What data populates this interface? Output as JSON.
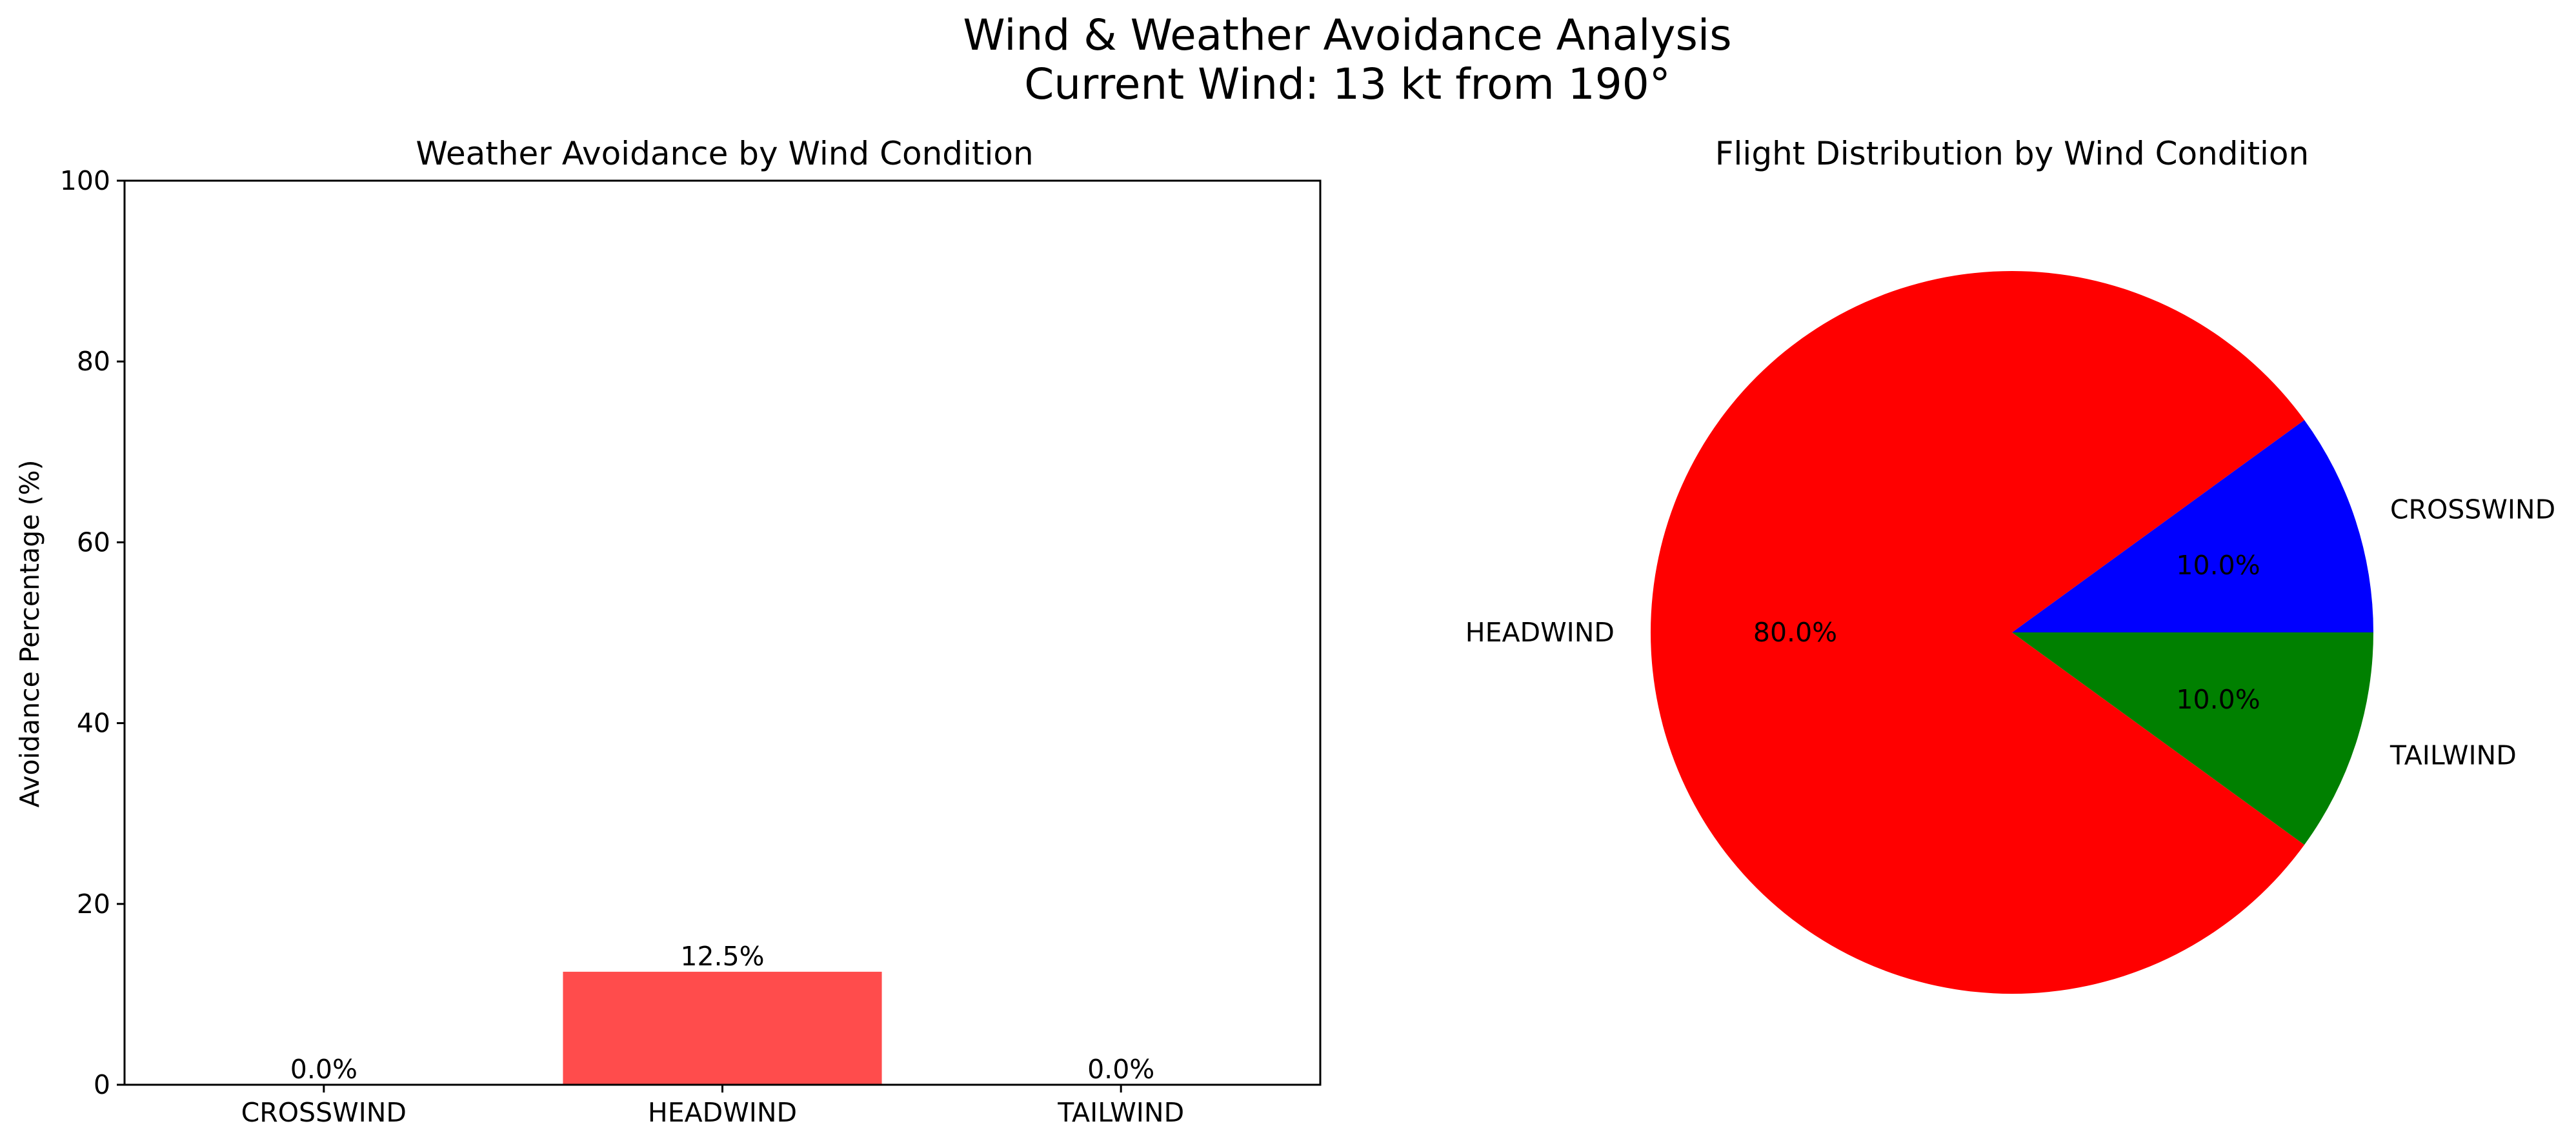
{
  "figure": {
    "title_line1": "Wind & Weather Avoidance Analysis",
    "title_line2": "Current Wind: 13 kt from 190°"
  },
  "chart_data": [
    {
      "type": "bar",
      "title": "Weather Avoidance by Wind Condition",
      "xlabel": "",
      "ylabel": "Avoidance Percentage (%)",
      "categories": [
        "CROSSWIND",
        "HEADWIND",
        "TAILWIND"
      ],
      "values": [
        0.0,
        12.5,
        0.0
      ],
      "value_labels": [
        "0.0%",
        "12.5%",
        "0.0%"
      ],
      "ylim": [
        0,
        100
      ],
      "yticks": [
        0,
        20,
        40,
        60,
        80,
        100
      ],
      "ytick_labels": [
        "0",
        "20",
        "40",
        "60",
        "80",
        "100"
      ],
      "bar_color": "#ff4c4c",
      "grid": false
    },
    {
      "type": "pie",
      "title": "Flight Distribution by Wind Condition",
      "labels": [
        "CROSSWIND",
        "HEADWIND",
        "TAILWIND"
      ],
      "values": [
        10.0,
        80.0,
        10.0
      ],
      "pct_labels": [
        "10.0%",
        "80.0%",
        "10.0%"
      ],
      "colors": [
        "#0000ff",
        "#ff0000",
        "#008000"
      ]
    }
  ]
}
